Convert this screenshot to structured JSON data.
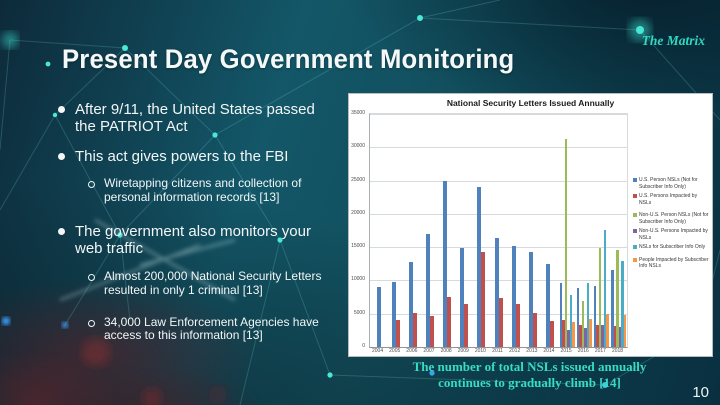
{
  "header": {
    "title": "Present Day Government Monitoring",
    "deck_title": "The Matrix"
  },
  "bullets": [
    {
      "level": 1,
      "text": "After 9/11, the United States passed\nthe PATRIOT Act"
    },
    {
      "level": 1,
      "text": "This act gives powers to the FBI"
    },
    {
      "level": 2,
      "text": "Wiretapping citizens and collection of\npersonal information records [13]"
    },
    {
      "level": 1,
      "text": "The government also monitors your\nweb traffic"
    },
    {
      "level": 2,
      "text": "Almost 200,000 National Security Letters\nresulted in only 1 criminal [13]"
    },
    {
      "level": 2,
      "text": "34,000 Law Enforcement Agencies have\naccess to this information [13]"
    }
  ],
  "chart_data": {
    "type": "bar",
    "title": "National Security Letters Issued Annually",
    "categories": [
      "2004",
      "2005",
      "2006",
      "2007",
      "2008",
      "2009",
      "2010",
      "2011",
      "2012",
      "2013",
      "2014",
      "2015",
      "2016",
      "2017",
      "2018"
    ],
    "series": [
      {
        "name": "U.S. Person NSLs (Not for Subscriber Info Only)",
        "color": "#4f81bd",
        "values": [
          9000,
          9700,
          12800,
          17000,
          24900,
          14800,
          24000,
          16400,
          15200,
          14300,
          12500,
          9650,
          8900,
          9100,
          11600
        ]
      },
      {
        "name": "U.S. Persons Impacted by NSLs",
        "color": "#c0504d",
        "values": [
          0,
          4000,
          5100,
          4700,
          7500,
          6400,
          14200,
          7400,
          6500,
          5100,
          3900,
          4000,
          3300,
          3300,
          3150
        ]
      },
      {
        "name": "Non-U.S. Person NSLs (Not for Subscriber Info Only)",
        "color": "#9bbb59",
        "values": [
          0,
          0,
          0,
          0,
          0,
          0,
          0,
          0,
          0,
          0,
          0,
          31300,
          6900,
          14900,
          14550
        ]
      },
      {
        "name": "Non-U.S. Persons Impacted by NSLs",
        "color": "#8064a2",
        "values": [
          0,
          0,
          0,
          0,
          0,
          0,
          0,
          0,
          0,
          0,
          0,
          2550,
          2900,
          3300,
          3050
        ]
      },
      {
        "name": "NSLs for Subscriber Info Only",
        "color": "#4bacc6",
        "values": [
          0,
          0,
          0,
          0,
          0,
          0,
          0,
          0,
          0,
          0,
          0,
          7800,
          9650,
          17600,
          12950
        ]
      },
      {
        "name": "People Impacted by Subscriber Info NSLs",
        "color": "#f79646",
        "values": [
          0,
          0,
          0,
          0,
          0,
          0,
          0,
          0,
          0,
          0,
          0,
          3800,
          4150,
          5000,
          4800
        ]
      }
    ],
    "ylim": [
      0,
      35000
    ],
    "ytick_step": 5000,
    "grid": true,
    "legend_position": "right"
  },
  "chart_caption": "The number of total NSLs issued annually\ncontinues to gradually climb [14]",
  "footer": {
    "page_number": "10"
  },
  "colors": {
    "accent_teal": "#2fd9c0",
    "background_dark": "#0c3b4a",
    "text_light": "#f2f6f7",
    "panel_white": "#ffffff"
  }
}
